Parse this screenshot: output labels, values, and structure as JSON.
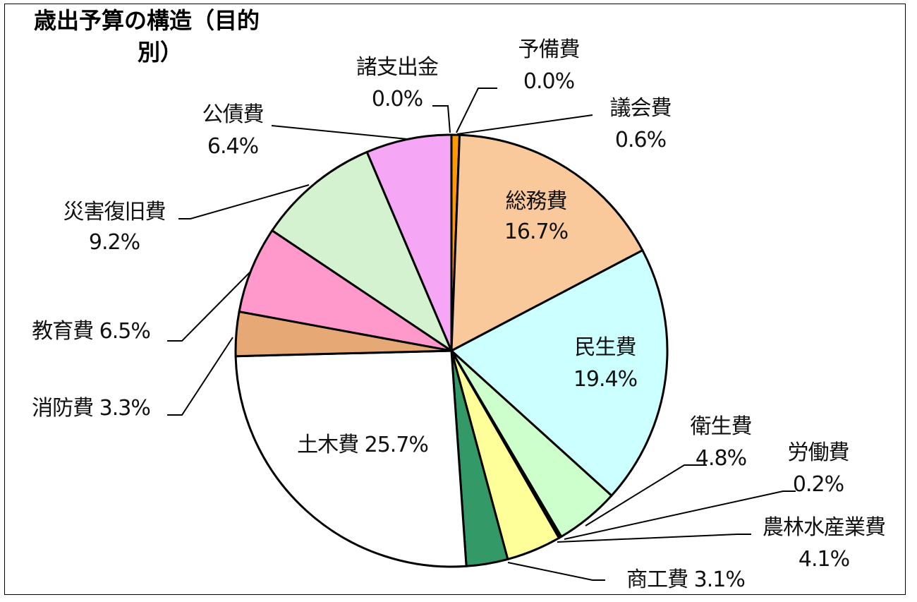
{
  "chart_data": {
    "type": "pie",
    "title": "歳出予算の構造（目的別）",
    "title_line1": "歳出予算の構造（目的",
    "title_line2": "別）",
    "start_angle_deg": 0,
    "direction": "clockwise",
    "slices": [
      {
        "name": "予備費",
        "value": 0.0,
        "label": "0.0%",
        "color": "#ffffff"
      },
      {
        "name": "議会費",
        "value": 0.6,
        "label": "0.6%",
        "color": "#ff9900"
      },
      {
        "name": "総務費",
        "value": 16.7,
        "label": "16.7%",
        "color": "#f9c99b"
      },
      {
        "name": "民生費",
        "value": 19.4,
        "label": "19.4%",
        "color": "#ccffff"
      },
      {
        "name": "衛生費",
        "value": 4.8,
        "label": "4.8%",
        "color": "#ccffcc"
      },
      {
        "name": "労働費",
        "value": 0.2,
        "label": "0.2%",
        "color": "#000000"
      },
      {
        "name": "農林水産業費",
        "value": 4.1,
        "label": "4.1%",
        "color": "#ffff99"
      },
      {
        "name": "商工費",
        "value": 3.1,
        "label": "3.1%",
        "color": "#339966"
      },
      {
        "name": "土木費",
        "value": 25.7,
        "label": "25.7%",
        "color": "#ffffff"
      },
      {
        "name": "消防費",
        "value": 3.3,
        "label": "3.3%",
        "color": "#e6a875"
      },
      {
        "name": "教育費",
        "value": 6.5,
        "label": "6.5%",
        "color": "#ff99cc"
      },
      {
        "name": "災害復旧費",
        "value": 9.2,
        "label": "9.2%",
        "color": "#d5f2d0"
      },
      {
        "name": "公債費",
        "value": 6.4,
        "label": "6.4%",
        "color": "#f5a6f5"
      },
      {
        "name": "諸支出金",
        "value": 0.0,
        "label": "0.0%",
        "color": "#ffffff"
      }
    ]
  }
}
